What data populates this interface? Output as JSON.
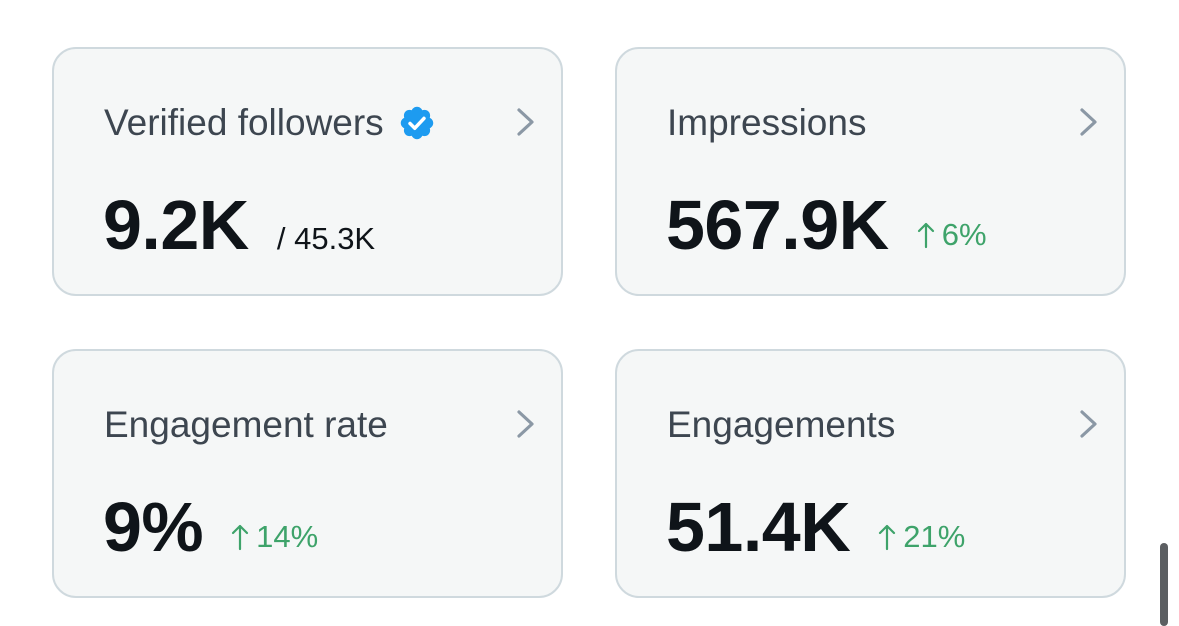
{
  "cards": [
    {
      "title": "Verified followers",
      "value": "9.2K",
      "total": "/ 45.3K",
      "icons": {
        "badge": "verified-badge-icon",
        "chevron": "chevron-right-icon"
      }
    },
    {
      "title": "Impressions",
      "value": "567.9K",
      "change": "6%",
      "change_direction": "up",
      "icons": {
        "chevron": "chevron-right-icon",
        "arrow": "arrow-up-icon"
      }
    },
    {
      "title": "Engagement rate",
      "value": "9%",
      "change": "14%",
      "change_direction": "up",
      "icons": {
        "chevron": "chevron-right-icon",
        "arrow": "arrow-up-icon"
      }
    },
    {
      "title": "Engagements",
      "value": "51.4K",
      "change": "21%",
      "change_direction": "up",
      "icons": {
        "chevron": "chevron-right-icon",
        "arrow": "arrow-up-icon"
      }
    }
  ],
  "colors": {
    "card_background": "#f5f7f7",
    "card_border": "#cfd9de",
    "title_text": "#3d4650",
    "value_text": "#0f1419",
    "positive_change": "#3ea36a",
    "verified_badge": "#1d9bf0",
    "chevron": "#8b98a5"
  }
}
